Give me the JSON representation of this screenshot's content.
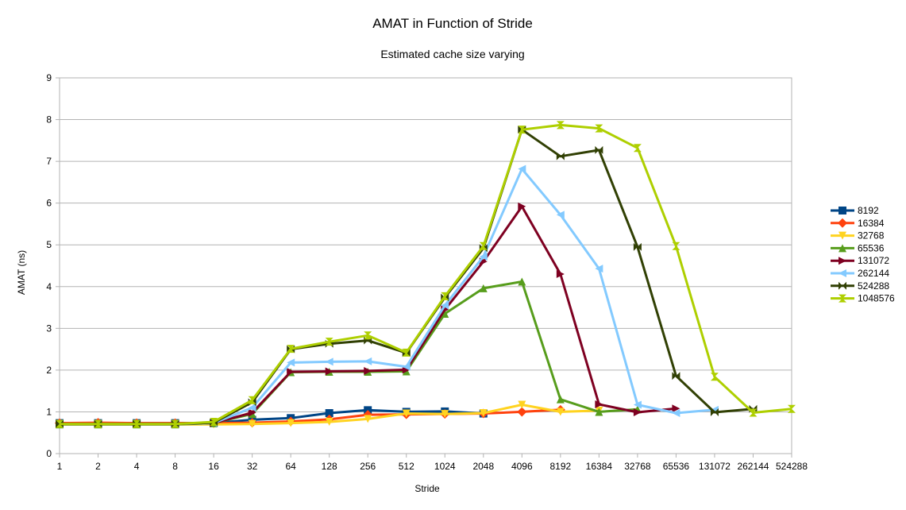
{
  "chart_data": {
    "type": "line",
    "title": "AMAT in Function of Stride",
    "subtitle": "Estimated cache size varying",
    "xlabel": "Stride",
    "ylabel": "AMAT (ns)",
    "ylim": [
      0,
      9
    ],
    "y_ticks": [
      "0",
      "1",
      "2",
      "3",
      "4",
      "5",
      "6",
      "7",
      "8",
      "9"
    ],
    "grid": true,
    "legend_position": "right",
    "categories": [
      "1",
      "2",
      "4",
      "8",
      "16",
      "32",
      "64",
      "128",
      "256",
      "512",
      "1024",
      "2048",
      "4096",
      "8192",
      "16384",
      "32768",
      "65536",
      "131072",
      "262144",
      "524288"
    ],
    "series": [
      {
        "name": "8192",
        "color": "#004586",
        "marker": "square",
        "values": [
          0.73,
          0.73,
          0.73,
          0.73,
          0.73,
          0.81,
          0.85,
          0.97,
          1.04,
          1.0,
          1.01,
          0.96,
          null,
          null,
          null,
          null,
          null,
          null,
          null,
          null
        ]
      },
      {
        "name": "16384",
        "color": "#ff420e",
        "marker": "diamond",
        "values": [
          0.73,
          0.74,
          0.73,
          0.73,
          0.73,
          0.74,
          0.77,
          0.82,
          0.93,
          0.94,
          0.95,
          0.96,
          1.0,
          1.05,
          null,
          null,
          null,
          null,
          null,
          null
        ]
      },
      {
        "name": "32768",
        "color": "#ffd320",
        "marker": "triangle-down",
        "values": [
          0.7,
          0.7,
          0.7,
          0.7,
          0.7,
          0.71,
          0.73,
          0.76,
          0.83,
          0.96,
          0.95,
          0.97,
          1.17,
          1.0,
          1.03,
          null,
          null,
          null,
          null,
          null
        ]
      },
      {
        "name": "65536",
        "color": "#579d1c",
        "marker": "triangle-up",
        "values": [
          0.7,
          0.7,
          0.7,
          0.7,
          0.73,
          0.95,
          1.95,
          1.96,
          1.96,
          1.97,
          3.35,
          3.96,
          4.12,
          1.3,
          1.0,
          1.06,
          null,
          null,
          null,
          null
        ]
      },
      {
        "name": "131072",
        "color": "#7e0021",
        "marker": "triangle-right",
        "values": [
          0.71,
          0.71,
          0.71,
          0.71,
          0.73,
          0.98,
          1.96,
          1.97,
          1.98,
          2.01,
          3.45,
          4.6,
          5.92,
          4.3,
          1.18,
          0.99,
          1.08,
          null,
          null,
          null
        ]
      },
      {
        "name": "262144",
        "color": "#83caff",
        "marker": "triangle-left",
        "values": [
          0.71,
          0.71,
          0.71,
          0.71,
          0.73,
          1.1,
          2.18,
          2.2,
          2.21,
          2.08,
          3.55,
          4.72,
          6.82,
          5.72,
          4.43,
          1.17,
          0.97,
          1.05,
          null,
          null
        ]
      },
      {
        "name": "524288",
        "color": "#314004",
        "marker": "x",
        "values": [
          0.71,
          0.71,
          0.71,
          0.71,
          0.74,
          1.23,
          2.5,
          2.63,
          2.71,
          2.41,
          3.74,
          4.92,
          7.76,
          7.12,
          7.27,
          4.95,
          1.86,
          0.99,
          1.07,
          null
        ]
      },
      {
        "name": "1048576",
        "color": "#aecf00",
        "marker": "hourglass",
        "values": [
          0.71,
          0.71,
          0.71,
          0.71,
          0.76,
          1.28,
          2.51,
          2.68,
          2.83,
          2.42,
          3.77,
          4.97,
          7.76,
          7.87,
          7.79,
          7.32,
          4.97,
          1.84,
          0.98,
          1.07
        ]
      }
    ]
  }
}
